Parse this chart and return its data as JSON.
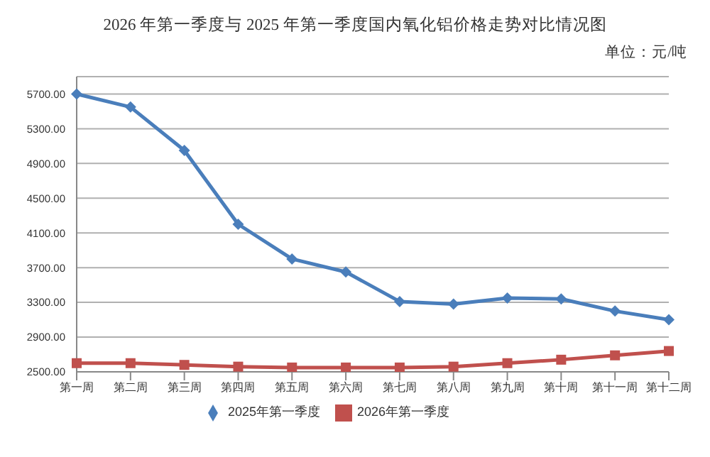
{
  "chart_data": {
    "type": "line",
    "title": "2026 年第一季度与 2025 年第一季度国内氧化铝价格走势对比情况图",
    "annotations": [
      "单位：元/吨"
    ],
    "categories": [
      "第一周",
      "第二周",
      "第三周",
      "第四周",
      "第五周",
      "第六周",
      "第七周",
      "第八周",
      "第九周",
      "第十周",
      "第十一周",
      "第十二周"
    ],
    "series": [
      {
        "name": "2025年第一季度",
        "color": "#4a7ebb",
        "marker": "diamond",
        "values": [
          5700,
          5550,
          5050,
          4200,
          3800,
          3650,
          3310,
          3280,
          3350,
          3340,
          3200,
          3100
        ]
      },
      {
        "name": "2026年第一季度",
        "color": "#c0504d",
        "marker": "square",
        "values": [
          2600,
          2600,
          2580,
          2560,
          2550,
          2550,
          2550,
          2560,
          2600,
          2640,
          2690,
          2740
        ]
      }
    ],
    "ylim": [
      2500,
      5900
    ],
    "yticks": [
      {
        "value": 2500,
        "label": "2500.00"
      },
      {
        "value": 2900,
        "label": "2900.00"
      },
      {
        "value": 3300,
        "label": "3300.00"
      },
      {
        "value": 3700,
        "label": "3700.00"
      },
      {
        "value": 4100,
        "label": "4100.00"
      },
      {
        "value": 4500,
        "label": "4500.00"
      },
      {
        "value": 4900,
        "label": "4900.00"
      },
      {
        "value": 5300,
        "label": "5300.00"
      },
      {
        "value": 5700,
        "label": "5700.00"
      }
    ],
    "grid": "y",
    "legend": "bottom",
    "line_style": "solid"
  }
}
